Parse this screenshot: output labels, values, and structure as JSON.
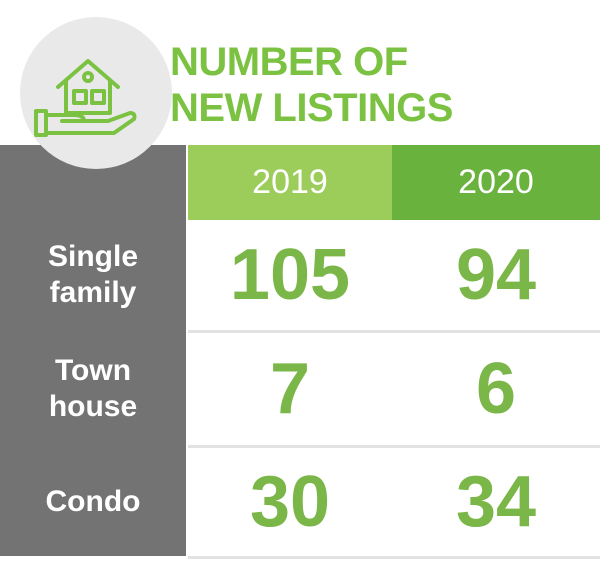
{
  "header": {
    "title_lines": [
      "NUMBER OF",
      "NEW LISTINGS"
    ]
  },
  "table": {
    "columns": [
      "2019",
      "2020"
    ],
    "rows": [
      {
        "label_lines": [
          "Single",
          "family"
        ],
        "values": [
          105,
          94
        ]
      },
      {
        "label_lines": [
          "Town",
          "house"
        ],
        "values": [
          7,
          6
        ]
      },
      {
        "label_lines": [
          "Condo"
        ],
        "values": [
          30,
          34
        ]
      }
    ]
  }
}
